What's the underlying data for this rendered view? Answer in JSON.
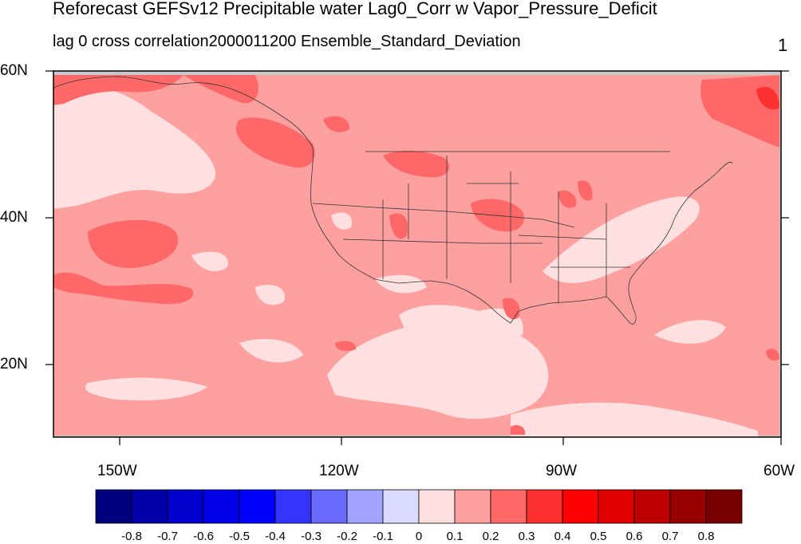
{
  "header": {
    "title": "Reforecast GEFSv12 Precipitable water Lag0_Corr w Vapor_Pressure_Deficit",
    "subtitle": "lag 0 cross correlation2000011200 Ensemble_Standard_Deviation",
    "corner_value": "1"
  },
  "map": {
    "projection": "cylindrical-equidistant",
    "lon_range": [
      -160,
      -60
    ],
    "lat_range": [
      10,
      60
    ],
    "background_level": "0.1 to 0.2",
    "lat_labels": [
      "60N",
      "40N",
      "20N"
    ],
    "lon_labels": [
      "150W",
      "120W",
      "90W",
      "60W"
    ],
    "colors": {
      "level_0_to_0.1": "#ffe0e0",
      "level_0.1_to_0.2": "#ffa0a0",
      "level_0.2_to_0.3": "#ff6868",
      "level_0.3_to_0.4": "#ff3030",
      "missing": "#c8c8c8"
    }
  },
  "colorbar": {
    "colors": [
      "#00007c",
      "#0000a8",
      "#0000cc",
      "#0000e8",
      "#0000ff",
      "#3434ff",
      "#6a6aff",
      "#a2a2ff",
      "#dadaff",
      "#ffe0e0",
      "#ffa0a0",
      "#ff6868",
      "#ff3030",
      "#ff0000",
      "#e00000",
      "#bc0000",
      "#980000",
      "#780000"
    ],
    "labels": [
      "-0.8",
      "-0.7",
      "-0.6",
      "-0.5",
      "-0.4",
      "-0.3",
      "-0.2",
      "-0.1",
      "0",
      "0.1",
      "0.2",
      "0.3",
      "0.4",
      "0.5",
      "0.6",
      "0.7",
      "0.8"
    ]
  }
}
